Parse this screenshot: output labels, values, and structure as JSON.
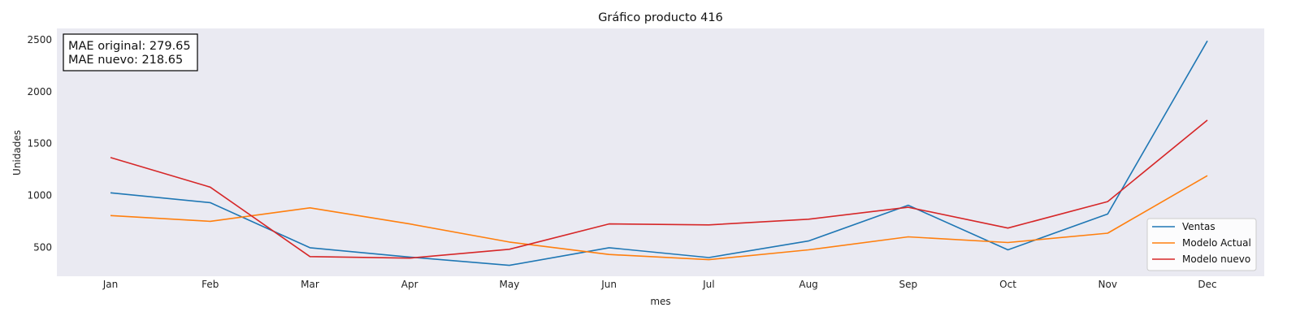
{
  "chart_data": {
    "type": "line",
    "title": "Gráfico producto 416",
    "xlabel": "mes",
    "ylabel": "Unidades",
    "categories": [
      "Jan",
      "Feb",
      "Mar",
      "Apr",
      "May",
      "Jun",
      "Jul",
      "Aug",
      "Sep",
      "Oct",
      "Nov",
      "Dec"
    ],
    "yticks": [
      500,
      1000,
      1500,
      2000,
      2500
    ],
    "ylim": [
      220,
      2610
    ],
    "grid": false,
    "legend_position": "lower-right",
    "series": [
      {
        "name": "Ventas",
        "color": "#1f77b4",
        "values": [
          1025,
          930,
          495,
          405,
          325,
          495,
          400,
          560,
          905,
          475,
          820,
          2490
        ]
      },
      {
        "name": "Modelo Actual",
        "color": "#ff7f0e",
        "values": [
          805,
          750,
          880,
          725,
          550,
          430,
          380,
          475,
          600,
          545,
          635,
          1190
        ]
      },
      {
        "name": "Modelo nuevo",
        "color": "#d62728",
        "values": [
          1365,
          1080,
          410,
          395,
          480,
          725,
          715,
          770,
          885,
          685,
          940,
          1725
        ]
      }
    ],
    "annotation": {
      "line1": "MAE original: 279.65",
      "line2": "MAE nuevo: 218.65"
    }
  }
}
